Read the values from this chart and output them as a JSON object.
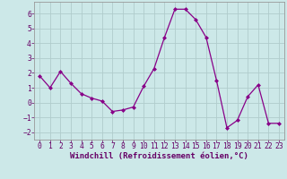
{
  "x": [
    0,
    1,
    2,
    3,
    4,
    5,
    6,
    7,
    8,
    9,
    10,
    11,
    12,
    13,
    14,
    15,
    16,
    17,
    18,
    19,
    20,
    21,
    22,
    23
  ],
  "y": [
    1.8,
    1.0,
    2.1,
    1.3,
    0.6,
    0.3,
    0.1,
    -0.6,
    -0.5,
    -0.3,
    1.1,
    2.3,
    4.4,
    6.3,
    6.3,
    5.6,
    4.4,
    1.5,
    -1.7,
    -1.2,
    0.4,
    1.2,
    -1.4,
    -1.4
  ],
  "line_color": "#880088",
  "marker": "D",
  "marker_size": 2.0,
  "bg_color": "#cce8e8",
  "grid_color": "#b0cccc",
  "xlabel": "Windchill (Refroidissement éolien,°C)",
  "xlim": [
    -0.5,
    23.5
  ],
  "ylim": [
    -2.5,
    6.8
  ],
  "yticks": [
    -2,
    -1,
    0,
    1,
    2,
    3,
    4,
    5,
    6
  ],
  "xticks": [
    0,
    1,
    2,
    3,
    4,
    5,
    6,
    7,
    8,
    9,
    10,
    11,
    12,
    13,
    14,
    15,
    16,
    17,
    18,
    19,
    20,
    21,
    22,
    23
  ],
  "label_fontsize": 6.5,
  "tick_fontsize": 5.8
}
